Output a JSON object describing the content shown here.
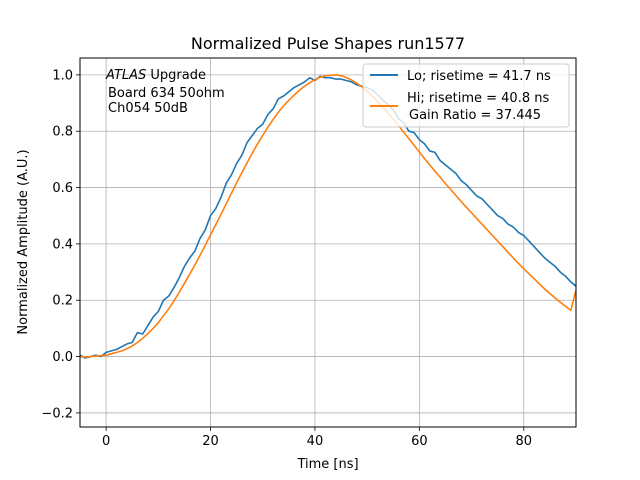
{
  "chart_data": {
    "type": "line",
    "title": "Normalized Pulse Shapes run1577",
    "xlabel": "Time [ns]",
    "ylabel": "Normalized Amplitude (A.U.)",
    "xlim": [
      -5,
      90
    ],
    "ylim": [
      -0.25,
      1.06
    ],
    "xticks": [
      0,
      20,
      40,
      60,
      80
    ],
    "yticks": [
      -0.2,
      0.0,
      0.2,
      0.4,
      0.6,
      0.8,
      1.0
    ],
    "xtick_labels": [
      "0",
      "20",
      "40",
      "60",
      "80"
    ],
    "ytick_labels": [
      "−0.2",
      "0.0",
      "0.2",
      "0.4",
      "0.6",
      "0.8",
      "1.0"
    ],
    "grid": true,
    "legend_position": "top-right",
    "annotation": {
      "italic_part": "ATLAS",
      "rest_line1": " Upgrade",
      "line2": "Board 634 50ohm",
      "line3": "Ch054 50dB"
    },
    "series": [
      {
        "name": "Lo; risetime = 41.7 ns",
        "color": "#1f77b4",
        "x": [
          -5,
          -4,
          -3,
          -2,
          -1,
          0,
          1,
          2,
          3,
          4,
          5,
          6,
          7,
          8,
          9,
          10,
          11,
          12,
          13,
          14,
          15,
          16,
          17,
          18,
          19,
          20,
          21,
          22,
          23,
          24,
          25,
          26,
          27,
          28,
          29,
          30,
          31,
          32,
          33,
          34,
          35,
          36,
          37,
          38,
          39,
          40,
          41,
          42,
          43,
          44,
          45,
          46,
          47,
          48,
          49,
          50,
          51,
          52,
          53,
          54,
          55,
          56,
          57,
          58,
          59,
          60,
          61,
          62,
          63,
          64,
          65,
          66,
          67,
          68,
          69,
          70,
          71,
          72,
          73,
          74,
          75,
          76,
          77,
          78,
          79,
          80,
          81,
          82,
          83,
          84,
          85,
          86,
          87,
          88,
          89,
          90
        ],
        "y": [
          0.005,
          -0.005,
          0.0,
          0.005,
          0.0,
          0.015,
          0.02,
          0.025,
          0.035,
          0.045,
          0.05,
          0.085,
          0.08,
          0.11,
          0.14,
          0.16,
          0.2,
          0.215,
          0.245,
          0.28,
          0.32,
          0.35,
          0.375,
          0.42,
          0.45,
          0.5,
          0.525,
          0.565,
          0.615,
          0.645,
          0.685,
          0.715,
          0.76,
          0.785,
          0.81,
          0.825,
          0.86,
          0.88,
          0.915,
          0.925,
          0.94,
          0.955,
          0.965,
          0.975,
          0.99,
          0.98,
          0.995,
          0.99,
          0.99,
          0.985,
          0.985,
          0.98,
          0.975,
          0.965,
          0.96,
          0.955,
          0.945,
          0.93,
          0.91,
          0.895,
          0.875,
          0.845,
          0.83,
          0.8,
          0.795,
          0.77,
          0.755,
          0.73,
          0.725,
          0.695,
          0.68,
          0.665,
          0.65,
          0.625,
          0.61,
          0.59,
          0.57,
          0.56,
          0.54,
          0.52,
          0.5,
          0.49,
          0.47,
          0.46,
          0.44,
          0.43,
          0.41,
          0.39,
          0.37,
          0.35,
          0.335,
          0.32,
          0.3,
          0.285,
          0.265,
          0.25
        ]
      },
      {
        "name": "Hi; risetime = 40.8 ns\n Gain Ratio = 37.445",
        "color": "#ff7f0e",
        "x": [
          -5,
          -4,
          -3,
          -2,
          -1,
          0,
          1,
          2,
          3,
          4,
          5,
          6,
          7,
          8,
          9,
          10,
          11,
          12,
          13,
          14,
          15,
          16,
          17,
          18,
          19,
          20,
          21,
          22,
          23,
          24,
          25,
          26,
          27,
          28,
          29,
          30,
          31,
          32,
          33,
          34,
          35,
          36,
          37,
          38,
          39,
          40,
          41,
          42,
          43,
          44,
          45,
          46,
          47,
          48,
          49,
          50,
          51,
          52,
          53,
          54,
          55,
          56,
          57,
          58,
          59,
          60,
          61,
          62,
          63,
          64,
          65,
          66,
          67,
          68,
          69,
          70,
          71,
          72,
          73,
          74,
          75,
          76,
          77,
          78,
          79,
          80,
          81,
          82,
          83,
          84,
          85,
          86,
          87,
          88,
          89,
          90
        ],
        "y": [
          0.0,
          -0.002,
          0.0,
          0.002,
          0.003,
          0.005,
          0.01,
          0.015,
          0.02,
          0.028,
          0.038,
          0.05,
          0.065,
          0.082,
          0.1,
          0.12,
          0.145,
          0.17,
          0.198,
          0.228,
          0.26,
          0.292,
          0.325,
          0.36,
          0.395,
          0.432,
          0.468,
          0.505,
          0.542,
          0.58,
          0.617,
          0.653,
          0.688,
          0.722,
          0.755,
          0.785,
          0.815,
          0.842,
          0.868,
          0.89,
          0.91,
          0.928,
          0.945,
          0.96,
          0.972,
          0.983,
          0.992,
          0.997,
          0.999,
          1.0,
          0.997,
          0.991,
          0.982,
          0.971,
          0.957,
          0.942,
          0.925,
          0.906,
          0.886,
          0.864,
          0.842,
          0.82,
          0.797,
          0.773,
          0.75,
          0.726,
          0.703,
          0.68,
          0.658,
          0.636,
          0.614,
          0.593,
          0.572,
          0.551,
          0.53,
          0.51,
          0.49,
          0.47,
          0.45,
          0.43,
          0.41,
          0.39,
          0.37,
          0.35,
          0.33,
          0.312,
          0.294,
          0.276,
          0.258,
          0.24,
          0.224,
          0.208,
          0.193,
          0.178,
          0.164,
          0.235
        ]
      }
    ]
  }
}
